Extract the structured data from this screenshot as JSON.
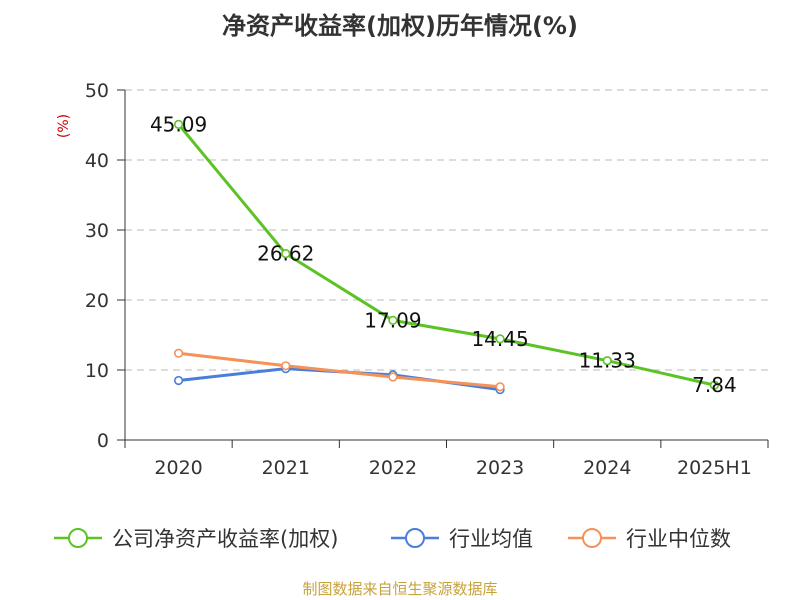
{
  "chart_data": {
    "type": "line",
    "title": "净资产收益率(加权)历年情况(%)",
    "ylabel": "(%)",
    "categories": [
      "2020",
      "2021",
      "2022",
      "2023",
      "2024",
      "2025H1"
    ],
    "ylim": [
      0,
      50
    ],
    "yticks": [
      0,
      10,
      20,
      30,
      40,
      50
    ],
    "grid": true,
    "legend_position": "bottom",
    "series": [
      {
        "name": "公司净资产收益率(加权)",
        "color": "#5bc324",
        "values": [
          45.09,
          26.62,
          17.09,
          14.45,
          11.33,
          7.84
        ],
        "labels": [
          "45.09",
          "26.62",
          "17.09",
          "14.45",
          "11.33",
          "7.84"
        ]
      },
      {
        "name": "行业均值",
        "color": "#4a7fd9",
        "values": [
          8.5,
          10.2,
          9.3,
          7.2,
          null,
          null
        ]
      },
      {
        "name": "行业中位数",
        "color": "#f4925a",
        "values": [
          12.4,
          10.6,
          9.0,
          7.6,
          null,
          null
        ]
      }
    ]
  },
  "footer": {
    "source": "制图数据来自恒生聚源数据库"
  }
}
